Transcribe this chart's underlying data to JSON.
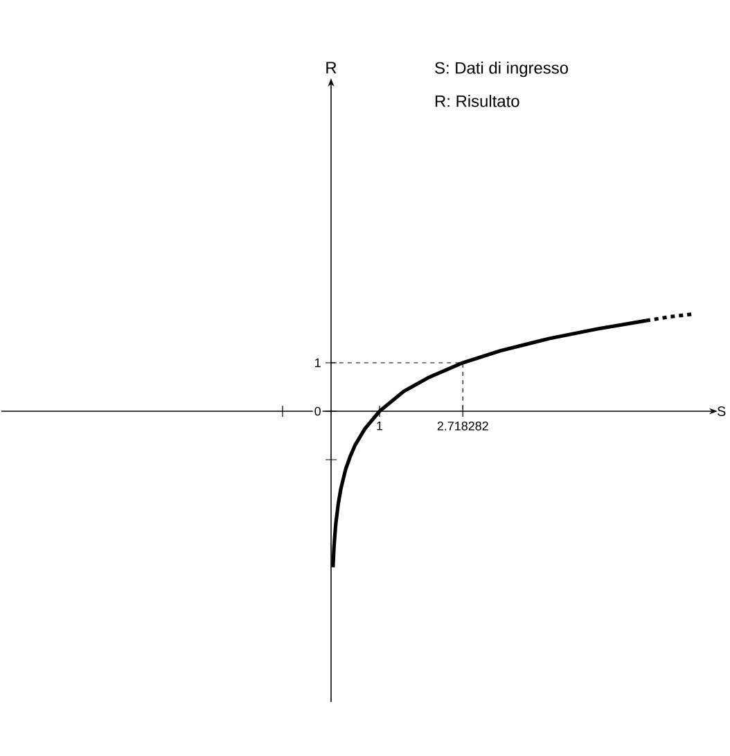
{
  "chart_data": {
    "type": "line",
    "xlabel": "S",
    "ylabel": "R",
    "annotations": [
      "S: Dati di ingresso",
      "R: Risultato"
    ],
    "xlim": [
      -6.8,
      7.8
    ],
    "ylim": [
      -6,
      6.7
    ],
    "xticks": [
      {
        "value": -1,
        "label": null
      },
      {
        "value": 1,
        "label": "1"
      },
      {
        "value": 2.718282,
        "label": "2.718282"
      }
    ],
    "yticks": [
      {
        "value": -1,
        "label": null
      },
      {
        "value": 0,
        "label": "0"
      },
      {
        "value": 1,
        "label": "1"
      }
    ],
    "marker": "none",
    "grid": false,
    "series": [
      {
        "color": "#000000",
        "line_style": "solid",
        "x": [
          0.04,
          0.06,
          0.08,
          0.1,
          0.15,
          0.2,
          0.3,
          0.4,
          0.5,
          0.7,
          1,
          1.5,
          2,
          2.718282,
          3.5,
          4.5,
          5.5,
          6.5
        ],
        "values": [
          -3.22,
          -2.81,
          -2.53,
          -2.3,
          -1.9,
          -1.61,
          -1.2,
          -0.92,
          -0.69,
          -0.36,
          0,
          0.41,
          0.69,
          1,
          1.25,
          1.5,
          1.7,
          1.87
        ]
      },
      {
        "color": "#000000",
        "line_style": "dashed",
        "x": [
          6.5,
          7,
          7.5
        ],
        "values": [
          1.87,
          1.95,
          2.01
        ]
      },
      {
        "color": "#000000",
        "line_style": "dashed",
        "x": [
          0,
          2.718282,
          2.718282
        ],
        "values": [
          1,
          1,
          0
        ]
      }
    ]
  }
}
